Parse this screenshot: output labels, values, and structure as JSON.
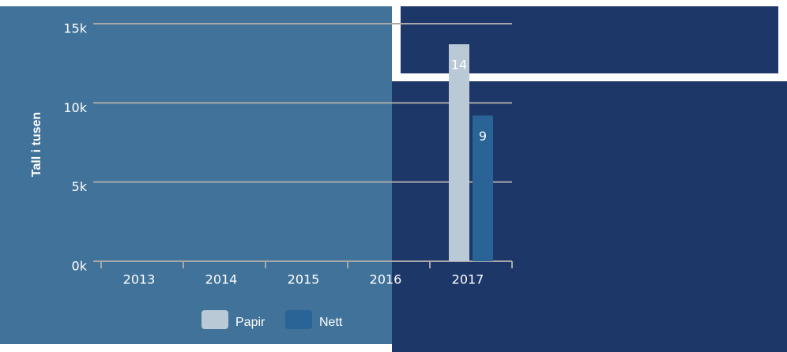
{
  "chart_data": {
    "type": "bar",
    "y_label": "Tall i tusen",
    "categories": [
      "2013",
      "2014",
      "2015",
      "2016",
      "2017"
    ],
    "series": [
      {
        "name": "Papir",
        "color": "#b9c9d5",
        "values": [
          null,
          null,
          null,
          null,
          13700
        ],
        "value_labels": [
          null,
          null,
          null,
          null,
          "14"
        ]
      },
      {
        "name": "Nett",
        "color": "#2a6496",
        "values": [
          null,
          null,
          null,
          null,
          9200
        ],
        "value_labels": [
          null,
          null,
          null,
          null,
          "9"
        ]
      }
    ],
    "ylim": [
      0,
      15000
    ],
    "yticks": [
      {
        "value": 0,
        "label": "0k"
      },
      {
        "value": 5000,
        "label": "5k"
      },
      {
        "value": 10000,
        "label": "10k"
      },
      {
        "value": 15000,
        "label": "15k"
      }
    ],
    "grid": true,
    "legend": "bottom"
  }
}
